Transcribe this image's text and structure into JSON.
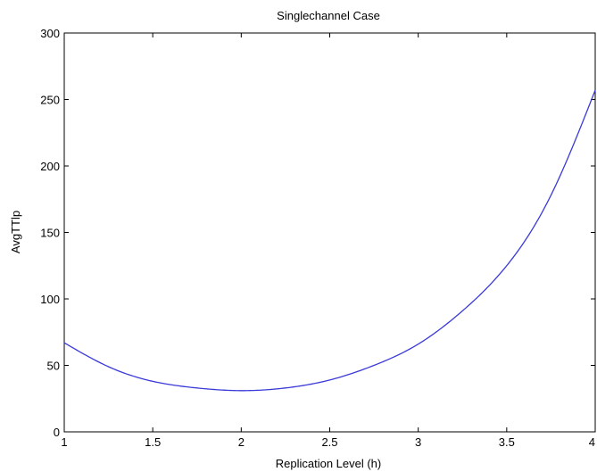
{
  "chart_data": {
    "type": "line",
    "title": "Singlechannel Case",
    "xlabel": "Replication Level (h)",
    "ylabel": "AvgTTlp",
    "xlim": [
      1,
      4
    ],
    "ylim": [
      0,
      300
    ],
    "x_ticks": [
      "1",
      "1.5",
      "2",
      "2.5",
      "3",
      "3.5",
      "4"
    ],
    "y_ticks": [
      "0",
      "50",
      "100",
      "150",
      "200",
      "250",
      "300"
    ],
    "grid": false,
    "series": [
      {
        "color": "#3a3ad8",
        "x": [
          1.0,
          1.25,
          1.5,
          1.75,
          2.0,
          2.25,
          2.5,
          2.75,
          3.0,
          3.25,
          3.5,
          3.75,
          4.0
        ],
        "y": [
          67,
          49,
          38,
          33,
          31,
          33,
          39,
          50,
          66,
          91,
          125,
          178,
          257
        ]
      }
    ]
  }
}
